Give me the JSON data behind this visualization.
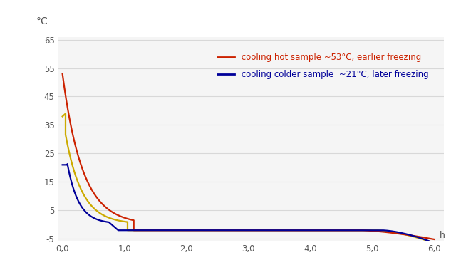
{
  "background_color": "#ffffff",
  "plot_bg_color": "#f5f5f5",
  "title": "°C",
  "xlim": [
    -0.08,
    6.15
  ],
  "ylim": [
    -5.8,
    66
  ],
  "xticks": [
    0.0,
    1.0,
    2.0,
    3.0,
    4.0,
    5.0,
    6.0
  ],
  "xtick_labels": [
    "0,0",
    "1,0",
    "2,0",
    "3,0",
    "4,0",
    "5,0",
    "6,0"
  ],
  "xlabel_h": "h",
  "yticks": [
    -5,
    5,
    15,
    25,
    35,
    45,
    55,
    65
  ],
  "ytick_labels": [
    "-5",
    "5",
    "15",
    "25",
    "35",
    "45",
    "55",
    "65"
  ],
  "grid_color": "#d8d8d8",
  "legend_red_label": " cooling hot sample ~53°C, earlier freezing",
  "legend_blue_label": " cooling colder sample  ~21°C, later freezing",
  "line_red_color": "#cc2200",
  "line_yellow_color": "#ccaa00",
  "line_blue_color": "#000099",
  "line_width": 1.6,
  "font_color_red": "#cc2200",
  "font_color_blue": "#000099",
  "tick_color": "#555555",
  "tick_fontsize": 8.5
}
